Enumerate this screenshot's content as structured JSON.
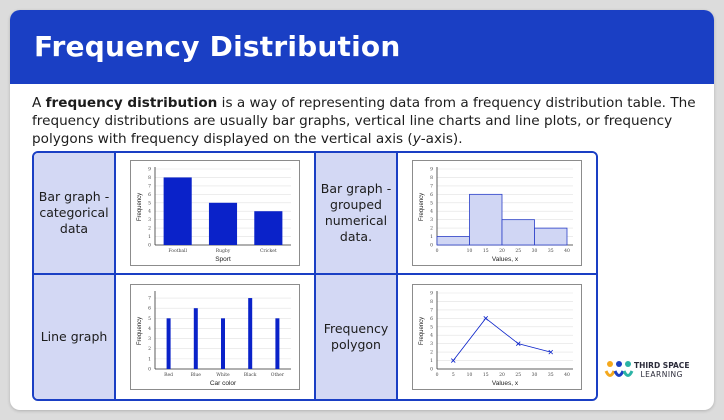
{
  "header": {
    "title": "Frequency Distribution"
  },
  "intro": {
    "pre": "A ",
    "bold": "frequency distribution",
    "post": " is a way of representing data from a frequency distribution table. The frequency distributions are usually bar graphs, vertical line charts and line plots, or frequency polygons with frequency displayed on the vertical axis (",
    "axis": "y",
    "end": "-axis)."
  },
  "cells": {
    "bar_cat_label": "Bar graph - categorical data",
    "bar_grouped_label": "Bar graph - grouped numerical data.",
    "line_graph_label": "Line graph",
    "polygon_label": "Frequency polygon"
  },
  "colors": {
    "brand": "#1a3fc4",
    "label_bg": "#d3d8f4",
    "bar": "#0a22c9",
    "hist_fill": "#d0d6f4",
    "hist_stroke": "#2a3fc8"
  },
  "logo": {
    "line1": "THIRD SPACE",
    "line2": "LEARNING"
  },
  "chart_data": [
    {
      "type": "bar",
      "categories": [
        "Football",
        "Rugby",
        "Cricket"
      ],
      "values": [
        8,
        5,
        4
      ],
      "xlabel": "Sport",
      "ylabel": "Frequency",
      "ylim": [
        0,
        9
      ],
      "yticks": [
        "0",
        "1",
        "2",
        "3",
        "4",
        "5",
        "6",
        "7",
        "8",
        "9"
      ]
    },
    {
      "type": "bar",
      "bins": [
        [
          0,
          10
        ],
        [
          10,
          20
        ],
        [
          20,
          30
        ],
        [
          30,
          40
        ]
      ],
      "values": [
        1,
        6,
        3,
        2
      ],
      "xticks": [
        "0",
        "10",
        "15",
        "20",
        "25",
        "30",
        "35",
        "40"
      ],
      "xlabel": "Values, x",
      "ylabel": "Frequency",
      "ylim": [
        0,
        9
      ],
      "yticks": [
        "0",
        "1",
        "2",
        "3",
        "4",
        "5",
        "6",
        "7",
        "8",
        "9"
      ]
    },
    {
      "type": "bar",
      "categories": [
        "Red",
        "Blue",
        "White",
        "Black",
        "Other"
      ],
      "values": [
        5,
        6,
        5,
        7,
        5
      ],
      "xlabel": "Car color",
      "ylabel": "Frequency",
      "ylim": [
        0,
        7.5
      ],
      "yticks": [
        "0",
        "1",
        "2",
        "3",
        "4",
        "5",
        "6",
        "7"
      ]
    },
    {
      "type": "line",
      "x": [
        5,
        15,
        25,
        35
      ],
      "y": [
        1,
        6,
        3,
        2
      ],
      "xticks": [
        "0",
        "5",
        "10",
        "15",
        "20",
        "25",
        "30",
        "35",
        "40"
      ],
      "xlabel": "Values, x",
      "ylabel": "Frequency",
      "ylim": [
        0,
        9
      ],
      "yticks": [
        "0",
        "1",
        "2",
        "3",
        "4",
        "5",
        "6",
        "7",
        "8",
        "9"
      ]
    }
  ]
}
